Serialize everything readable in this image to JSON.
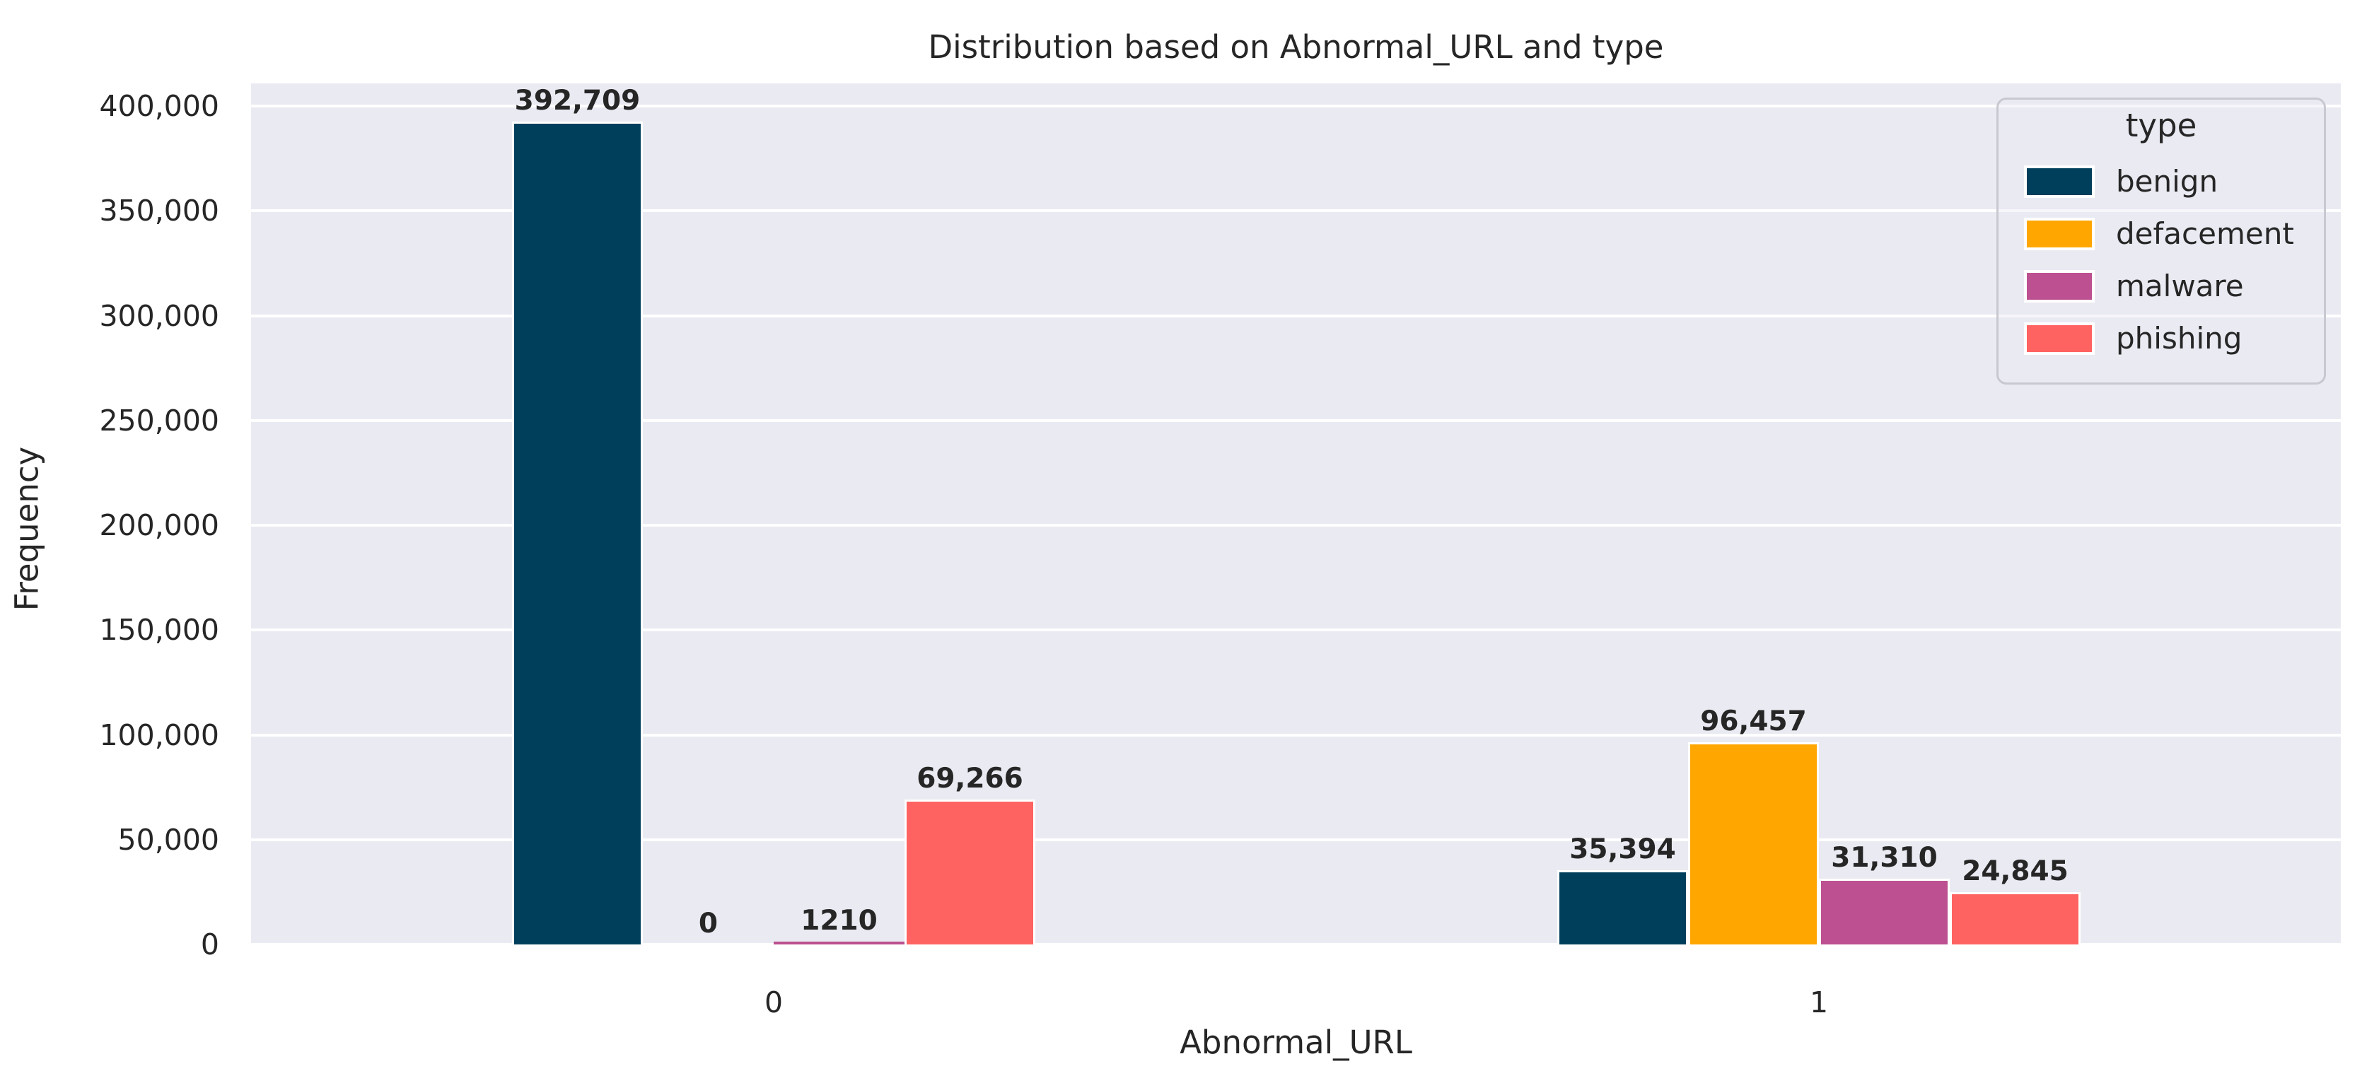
{
  "chart_data": {
    "type": "bar",
    "title": "Distribution based on Abnormal_URL and type",
    "xlabel": "Abnormal_URL",
    "ylabel": "Frequency",
    "categories": [
      "0",
      "1"
    ],
    "series": [
      {
        "name": "benign",
        "color": "#003f5c",
        "values": [
          392709,
          35394
        ],
        "labels": [
          "392,709",
          "35,394"
        ]
      },
      {
        "name": "defacement",
        "color": "#ffa600",
        "values": [
          0,
          96457
        ],
        "labels": [
          "0",
          "96,457"
        ]
      },
      {
        "name": "malware",
        "color": "#bc5090",
        "values": [
          1210,
          31310
        ],
        "labels": [
          "1210",
          "31,310"
        ]
      },
      {
        "name": "phishing",
        "color": "#ff6361",
        "values": [
          69266,
          24845
        ],
        "labels": [
          "69,266",
          "24,845"
        ]
      }
    ],
    "y_ticks": [
      {
        "value": 0,
        "label": "0"
      },
      {
        "value": 50000,
        "label": "50,000"
      },
      {
        "value": 100000,
        "label": "100,000"
      },
      {
        "value": 150000,
        "label": "150,000"
      },
      {
        "value": 200000,
        "label": "200,000"
      },
      {
        "value": 250000,
        "label": "250,000"
      },
      {
        "value": 300000,
        "label": "300,000"
      },
      {
        "value": 350000,
        "label": "350,000"
      },
      {
        "value": 400000,
        "label": "400,000"
      }
    ],
    "ylim": [
      0,
      410800
    ],
    "grid": true,
    "legend": {
      "title": "type",
      "position": "upper right"
    },
    "colors": {
      "plot_background": "#eaeaf2",
      "grid": "#ffffff",
      "text": "#262626",
      "figure_background": "#ffffff"
    }
  }
}
